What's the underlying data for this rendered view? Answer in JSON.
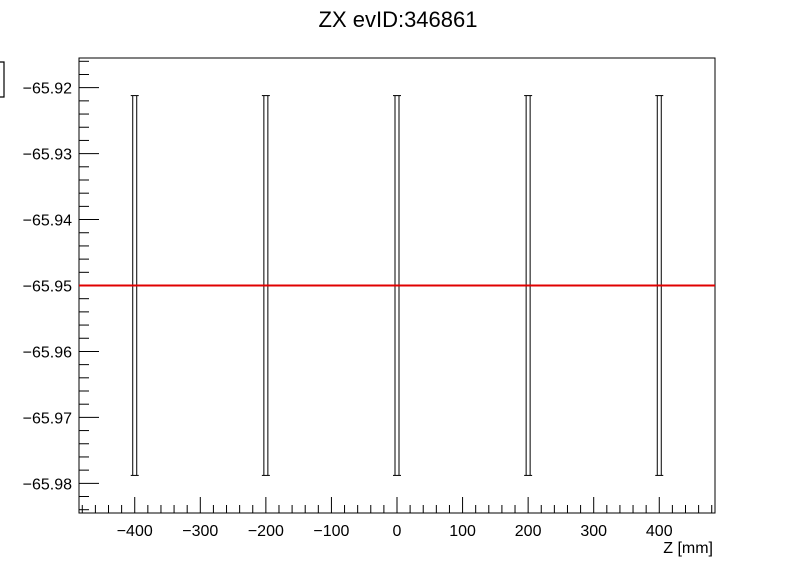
{
  "chart_data": {
    "type": "scatter",
    "title": "ZX evID:346861",
    "xlabel": "Z [mm]",
    "ylabel": "",
    "xlim": [
      -485,
      485
    ],
    "ylim": [
      -65.9845,
      -65.9155
    ],
    "x_ticks": [
      -400,
      -300,
      -200,
      -100,
      0,
      100,
      200,
      300,
      400
    ],
    "y_ticks": [
      -65.92,
      -65.93,
      -65.94,
      -65.95,
      -65.96,
      -65.97,
      -65.98
    ],
    "x_tick_labels": [
      "−400",
      "−300",
      "−200",
      "−100",
      "0",
      "100",
      "200",
      "300",
      "400"
    ],
    "y_tick_labels": [
      "−65.92",
      "−65.93",
      "−65.94",
      "−65.95",
      "−65.96",
      "−65.97",
      "−65.98"
    ],
    "series": [
      {
        "kind": "error-bars",
        "color": "#000000",
        "points": [
          {
            "x": -400,
            "y": -65.95,
            "ylow": -65.9788,
            "yhigh": -65.9212
          },
          {
            "x": -200,
            "y": -65.95,
            "ylow": -65.9788,
            "yhigh": -65.9212
          },
          {
            "x": 0,
            "y": -65.95,
            "ylow": -65.9788,
            "yhigh": -65.9212
          },
          {
            "x": 200,
            "y": -65.95,
            "ylow": -65.9788,
            "yhigh": -65.9212
          },
          {
            "x": 400,
            "y": -65.95,
            "ylow": -65.9788,
            "yhigh": -65.9212
          }
        ]
      },
      {
        "kind": "fit-line",
        "color": "#e00000",
        "y": -65.95
      }
    ],
    "grid": false,
    "legend": "none"
  }
}
